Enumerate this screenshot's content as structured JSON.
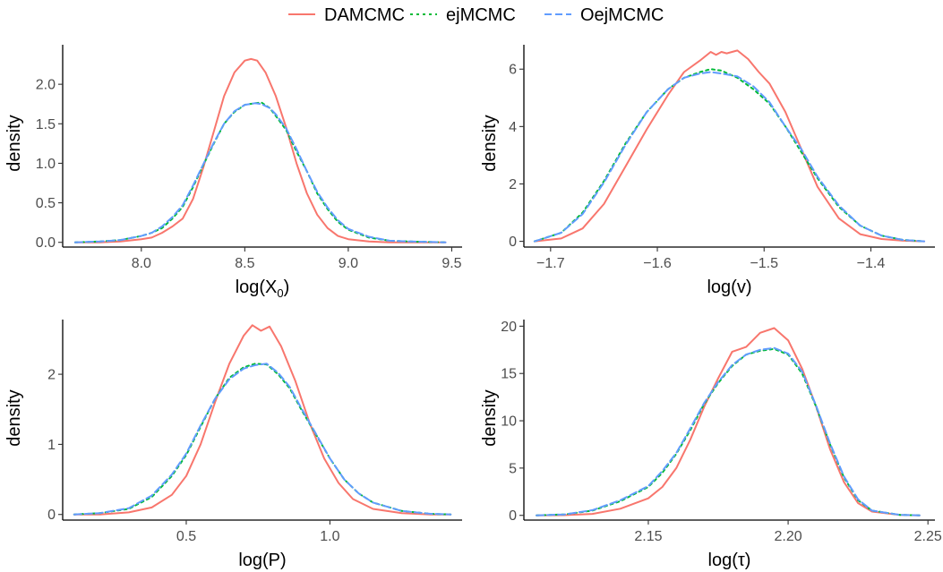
{
  "legend": {
    "placement": "top",
    "items": [
      {
        "label": "DAMCMC",
        "color": "#F8766D",
        "dash": "solid"
      },
      {
        "label": "ejMCMC",
        "color": "#00BA38",
        "dash": "dotted"
      },
      {
        "label": "OejMCMC",
        "color": "#619CFF",
        "dash": "dashed"
      }
    ]
  },
  "chart_data": [
    {
      "type": "line",
      "xlabel": "log(X",
      "xlabel_sub": "0",
      "xlabel_tail": ")",
      "ylabel": "density",
      "xlim": [
        7.62,
        9.55
      ],
      "ylim": [
        -0.06,
        2.5
      ],
      "xticks": [
        8.0,
        8.5,
        9.0,
        9.5
      ],
      "xtick_labels": [
        "8.0",
        "8.5",
        "9.0",
        "9.5"
      ],
      "yticks": [
        0.0,
        0.5,
        1.0,
        1.5,
        2.0
      ],
      "ytick_labels": [
        "0.0",
        "0.5",
        "1.0",
        "1.5",
        "2.0"
      ],
      "grid": false,
      "series": [
        {
          "name": "DAMCMC",
          "x": [
            7.68,
            7.8,
            7.9,
            8.0,
            8.05,
            8.1,
            8.15,
            8.2,
            8.25,
            8.3,
            8.35,
            8.4,
            8.45,
            8.5,
            8.53,
            8.56,
            8.6,
            8.65,
            8.7,
            8.75,
            8.8,
            8.85,
            8.9,
            8.95,
            9.0,
            9.1,
            9.2,
            9.3,
            9.47
          ],
          "y": [
            0.0,
            0.0,
            0.01,
            0.04,
            0.06,
            0.12,
            0.2,
            0.3,
            0.55,
            0.95,
            1.4,
            1.85,
            2.15,
            2.3,
            2.32,
            2.3,
            2.15,
            1.85,
            1.45,
            1.0,
            0.62,
            0.35,
            0.18,
            0.08,
            0.04,
            0.01,
            0.0,
            0.0,
            0.0
          ]
        },
        {
          "name": "ejMCMC",
          "x": [
            7.68,
            7.8,
            7.9,
            8.0,
            8.05,
            8.1,
            8.15,
            8.2,
            8.25,
            8.3,
            8.35,
            8.4,
            8.45,
            8.5,
            8.55,
            8.58,
            8.62,
            8.65,
            8.7,
            8.75,
            8.8,
            8.85,
            8.9,
            8.95,
            9.0,
            9.1,
            9.2,
            9.3,
            9.47
          ],
          "y": [
            0.0,
            0.01,
            0.03,
            0.08,
            0.12,
            0.18,
            0.3,
            0.45,
            0.7,
            0.98,
            1.25,
            1.5,
            1.65,
            1.74,
            1.76,
            1.77,
            1.7,
            1.6,
            1.42,
            1.15,
            0.9,
            0.62,
            0.42,
            0.26,
            0.16,
            0.06,
            0.02,
            0.01,
            0.0
          ]
        },
        {
          "name": "OejMCMC",
          "x": [
            7.68,
            7.8,
            7.9,
            8.0,
            8.05,
            8.1,
            8.15,
            8.2,
            8.25,
            8.3,
            8.35,
            8.4,
            8.45,
            8.5,
            8.55,
            8.58,
            8.62,
            8.65,
            8.7,
            8.75,
            8.8,
            8.85,
            8.9,
            8.95,
            9.0,
            9.1,
            9.2,
            9.3,
            9.47
          ],
          "y": [
            0.0,
            0.01,
            0.03,
            0.08,
            0.12,
            0.2,
            0.32,
            0.47,
            0.72,
            0.99,
            1.26,
            1.5,
            1.66,
            1.74,
            1.76,
            1.75,
            1.7,
            1.62,
            1.44,
            1.18,
            0.9,
            0.64,
            0.44,
            0.28,
            0.17,
            0.07,
            0.02,
            0.01,
            0.0
          ]
        }
      ]
    },
    {
      "type": "line",
      "xlabel": "log(v)",
      "ylabel": "density",
      "xlim": [
        -1.725,
        -1.34
      ],
      "ylim": [
        -0.2,
        6.85
      ],
      "xticks": [
        -1.7,
        -1.6,
        -1.5,
        -1.4
      ],
      "xtick_labels": [
        "−1.7",
        "−1.6",
        "−1.5",
        "−1.4"
      ],
      "yticks": [
        0,
        2,
        4,
        6
      ],
      "ytick_labels": [
        "0",
        "2",
        "4",
        "6"
      ],
      "grid": false,
      "series": [
        {
          "name": "DAMCMC",
          "x": [
            -1.715,
            -1.69,
            -1.67,
            -1.65,
            -1.63,
            -1.61,
            -1.59,
            -1.575,
            -1.56,
            -1.55,
            -1.545,
            -1.54,
            -1.535,
            -1.525,
            -1.515,
            -1.505,
            -1.495,
            -1.48,
            -1.465,
            -1.45,
            -1.43,
            -1.41,
            -1.39,
            -1.37,
            -1.35
          ],
          "y": [
            0.0,
            0.1,
            0.45,
            1.3,
            2.6,
            3.9,
            5.1,
            5.9,
            6.3,
            6.6,
            6.5,
            6.6,
            6.55,
            6.65,
            6.35,
            5.9,
            5.5,
            4.5,
            3.2,
            1.9,
            0.8,
            0.25,
            0.08,
            0.02,
            0.0
          ]
        },
        {
          "name": "ejMCMC",
          "x": [
            -1.715,
            -1.69,
            -1.67,
            -1.65,
            -1.63,
            -1.61,
            -1.59,
            -1.575,
            -1.56,
            -1.55,
            -1.54,
            -1.525,
            -1.51,
            -1.495,
            -1.48,
            -1.465,
            -1.45,
            -1.43,
            -1.41,
            -1.39,
            -1.37,
            -1.35
          ],
          "y": [
            0.0,
            0.3,
            1.0,
            2.1,
            3.4,
            4.5,
            5.3,
            5.7,
            5.9,
            6.0,
            5.95,
            5.7,
            5.3,
            4.8,
            4.0,
            3.1,
            2.2,
            1.2,
            0.55,
            0.2,
            0.05,
            0.0
          ]
        },
        {
          "name": "OejMCMC",
          "x": [
            -1.715,
            -1.69,
            -1.67,
            -1.65,
            -1.63,
            -1.61,
            -1.59,
            -1.575,
            -1.56,
            -1.55,
            -1.54,
            -1.525,
            -1.51,
            -1.495,
            -1.48,
            -1.465,
            -1.45,
            -1.43,
            -1.41,
            -1.39,
            -1.37,
            -1.35
          ],
          "y": [
            0.0,
            0.3,
            0.95,
            2.05,
            3.35,
            4.5,
            5.3,
            5.7,
            5.85,
            5.9,
            5.85,
            5.75,
            5.4,
            4.85,
            4.0,
            3.2,
            2.25,
            1.25,
            0.55,
            0.2,
            0.05,
            0.0
          ]
        }
      ]
    },
    {
      "type": "line",
      "xlabel": "log(P)",
      "ylabel": "density",
      "xlim": [
        0.07,
        1.46
      ],
      "ylim": [
        -0.08,
        2.78
      ],
      "xticks": [
        0.5,
        1.0
      ],
      "xtick_labels": [
        "0.5",
        "1.0"
      ],
      "yticks": [
        0,
        1,
        2
      ],
      "ytick_labels": [
        "0",
        "1",
        "2"
      ],
      "grid": false,
      "series": [
        {
          "name": "DAMCMC",
          "x": [
            0.11,
            0.2,
            0.3,
            0.38,
            0.45,
            0.5,
            0.55,
            0.6,
            0.65,
            0.7,
            0.73,
            0.76,
            0.79,
            0.83,
            0.88,
            0.93,
            0.98,
            1.03,
            1.08,
            1.15,
            1.25,
            1.35,
            1.42
          ],
          "y": [
            0.0,
            0.0,
            0.03,
            0.1,
            0.28,
            0.55,
            1.0,
            1.6,
            2.15,
            2.55,
            2.7,
            2.62,
            2.68,
            2.4,
            1.9,
            1.3,
            0.8,
            0.45,
            0.22,
            0.08,
            0.02,
            0.0,
            0.0
          ]
        },
        {
          "name": "ejMCMC",
          "x": [
            0.11,
            0.2,
            0.3,
            0.38,
            0.45,
            0.5,
            0.55,
            0.6,
            0.65,
            0.7,
            0.74,
            0.78,
            0.82,
            0.86,
            0.9,
            0.95,
            1.0,
            1.05,
            1.1,
            1.15,
            1.25,
            1.35,
            1.42
          ],
          "y": [
            0.0,
            0.02,
            0.08,
            0.25,
            0.55,
            0.85,
            1.25,
            1.65,
            1.95,
            2.1,
            2.15,
            2.14,
            2.0,
            1.8,
            1.5,
            1.15,
            0.8,
            0.5,
            0.3,
            0.17,
            0.05,
            0.01,
            0.0
          ]
        },
        {
          "name": "OejMCMC",
          "x": [
            0.11,
            0.2,
            0.3,
            0.38,
            0.45,
            0.5,
            0.55,
            0.6,
            0.65,
            0.7,
            0.74,
            0.78,
            0.82,
            0.86,
            0.9,
            0.95,
            1.0,
            1.05,
            1.1,
            1.15,
            1.25,
            1.35,
            1.42
          ],
          "y": [
            0.0,
            0.02,
            0.09,
            0.27,
            0.57,
            0.87,
            1.27,
            1.65,
            1.93,
            2.08,
            2.13,
            2.15,
            2.02,
            1.82,
            1.52,
            1.16,
            0.8,
            0.5,
            0.3,
            0.17,
            0.05,
            0.01,
            0.0
          ]
        }
      ]
    },
    {
      "type": "line",
      "xlabel": "log(τ)",
      "ylabel": "density",
      "xlim": [
        2.1055,
        2.2525
      ],
      "ylim": [
        -0.5,
        20.7
      ],
      "xticks": [
        2.15,
        2.2,
        2.25
      ],
      "xtick_labels": [
        "2.15",
        "2.20",
        "2.25"
      ],
      "yticks": [
        0,
        5,
        10,
        15,
        20
      ],
      "ytick_labels": [
        "0",
        "5",
        "10",
        "15",
        "20"
      ],
      "grid": false,
      "series": [
        {
          "name": "DAMCMC",
          "x": [
            2.11,
            2.12,
            2.13,
            2.14,
            2.15,
            2.155,
            2.16,
            2.165,
            2.17,
            2.175,
            2.18,
            2.185,
            2.19,
            2.195,
            2.2,
            2.205,
            2.21,
            2.215,
            2.22,
            2.225,
            2.23,
            2.24,
            2.247
          ],
          "y": [
            0.0,
            0.02,
            0.15,
            0.7,
            1.8,
            3.0,
            5.0,
            8.0,
            11.5,
            14.5,
            17.3,
            17.8,
            19.3,
            19.8,
            18.5,
            15.5,
            11.5,
            7.0,
            3.5,
            1.3,
            0.4,
            0.05,
            0.0
          ]
        },
        {
          "name": "ejMCMC",
          "x": [
            2.11,
            2.12,
            2.13,
            2.14,
            2.15,
            2.155,
            2.16,
            2.165,
            2.17,
            2.175,
            2.18,
            2.185,
            2.19,
            2.195,
            2.2,
            2.205,
            2.21,
            2.215,
            2.22,
            2.225,
            2.23,
            2.24,
            2.247
          ],
          "y": [
            0.0,
            0.1,
            0.5,
            1.5,
            3.0,
            4.5,
            6.5,
            9.0,
            11.8,
            14.0,
            15.8,
            17.0,
            17.4,
            17.6,
            17.0,
            15.0,
            11.5,
            7.5,
            4.0,
            1.6,
            0.5,
            0.05,
            0.0
          ]
        },
        {
          "name": "OejMCMC",
          "x": [
            2.11,
            2.12,
            2.13,
            2.14,
            2.15,
            2.155,
            2.16,
            2.165,
            2.17,
            2.175,
            2.18,
            2.185,
            2.19,
            2.195,
            2.2,
            2.205,
            2.21,
            2.215,
            2.22,
            2.225,
            2.23,
            2.24,
            2.247
          ],
          "y": [
            0.0,
            0.1,
            0.55,
            1.6,
            3.1,
            4.7,
            6.6,
            9.2,
            11.9,
            14.1,
            15.9,
            17.0,
            17.5,
            17.7,
            17.1,
            15.2,
            11.6,
            7.6,
            4.1,
            1.7,
            0.5,
            0.05,
            0.0
          ]
        }
      ]
    }
  ]
}
